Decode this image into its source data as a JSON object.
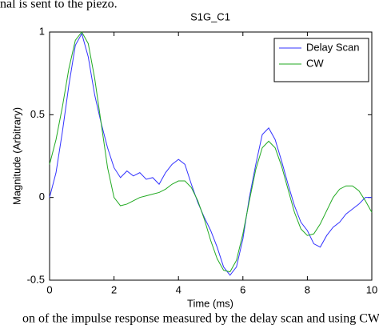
{
  "page_text": {
    "top": "nal is sent to the piezo.",
    "bottom": "on of the impulse response measured by the delay scan and using CW"
  },
  "chart_data": {
    "type": "line",
    "title": "S1G_C1",
    "x_label": "Time (ms)",
    "y_label": "Magnitude (Arbitrary)",
    "x": [
      0,
      0.2,
      0.4,
      0.6,
      0.8,
      1,
      1.2,
      1.4,
      1.6,
      1.8,
      2,
      2.2,
      2.4,
      2.6,
      2.8,
      3,
      3.2,
      3.4,
      3.6,
      3.8,
      4,
      4.2,
      4.4,
      4.6,
      4.8,
      5,
      5.2,
      5.4,
      5.6,
      5.8,
      6,
      6.2,
      6.4,
      6.6,
      6.8,
      7,
      7.2,
      7.4,
      7.6,
      7.8,
      8,
      8.2,
      8.4,
      8.6,
      8.8,
      9,
      9.2,
      9.4,
      9.6,
      9.8,
      10
    ],
    "series": [
      {
        "name": "Delay Scan",
        "color": "#3333ff",
        "values": [
          0,
          0.15,
          0.4,
          0.68,
          0.92,
          0.99,
          0.85,
          0.62,
          0.45,
          0.3,
          0.18,
          0.12,
          0.16,
          0.13,
          0.15,
          0.11,
          0.12,
          0.08,
          0.15,
          0.2,
          0.23,
          0.2,
          0.08,
          -0.03,
          -0.12,
          -0.2,
          -0.3,
          -0.42,
          -0.47,
          -0.42,
          -0.25,
          0,
          0.2,
          0.38,
          0.42,
          0.35,
          0.22,
          0.08,
          -0.05,
          -0.15,
          -0.2,
          -0.28,
          -0.3,
          -0.23,
          -0.18,
          -0.15,
          -0.1,
          -0.07,
          -0.04,
          0,
          0
        ]
      },
      {
        "name": "CW",
        "color": "#22aa22",
        "values": [
          0.2,
          0.35,
          0.55,
          0.78,
          0.95,
          1,
          0.93,
          0.72,
          0.45,
          0.18,
          0,
          -0.05,
          -0.04,
          -0.02,
          0,
          0.01,
          0.02,
          0.03,
          0.05,
          0.08,
          0.1,
          0.1,
          0.06,
          -0.02,
          -0.13,
          -0.26,
          -0.37,
          -0.44,
          -0.45,
          -0.38,
          -0.22,
          -0.02,
          0.17,
          0.3,
          0.34,
          0.3,
          0.19,
          0.05,
          -0.09,
          -0.19,
          -0.23,
          -0.22,
          -0.16,
          -0.08,
          0,
          0.05,
          0.07,
          0.07,
          0.04,
          -0.02,
          -0.09
        ]
      }
    ],
    "xlim": [
      0,
      10
    ],
    "xticks": [
      0,
      2,
      4,
      6,
      8,
      10
    ],
    "ylim": [
      -0.5,
      1
    ],
    "yticks": [
      -0.5,
      0,
      0.5,
      1
    ],
    "legend": "upper right",
    "grid": false
  }
}
